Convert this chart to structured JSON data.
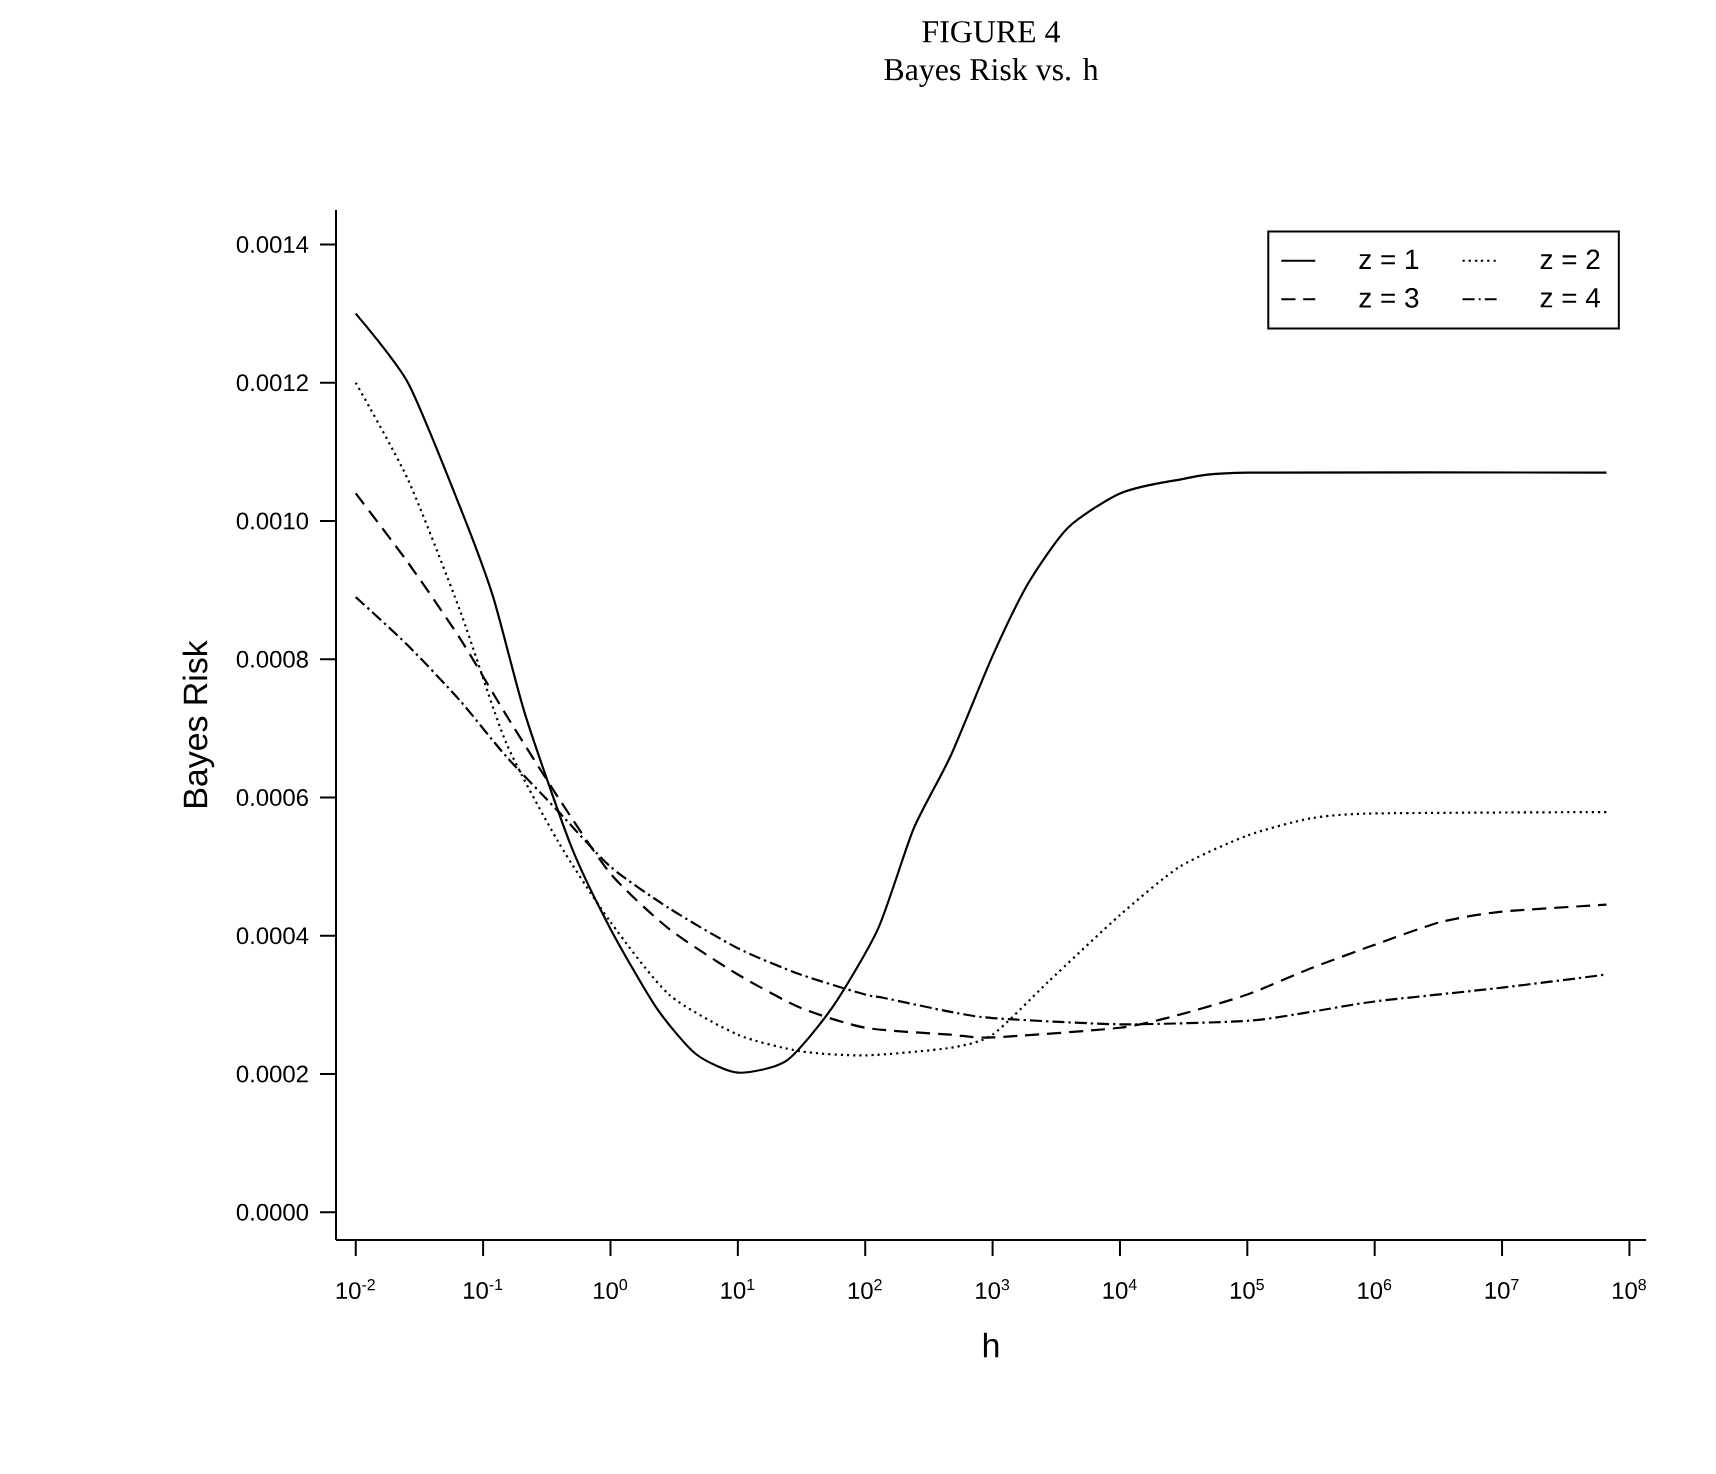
{
  "chart_data": {
    "type": "line",
    "title": "FIGURE 4",
    "subtitle": "Bayes Risk vs. h",
    "xlabel": "h",
    "ylabel": "Bayes Risk",
    "log": "x",
    "legend": "top right",
    "grid": false,
    "xlim": [
      0.007,
      135000000.0
    ],
    "ylim": [
      -4e-05,
      0.00145
    ],
    "xticks": [
      {
        "value": 0.01,
        "label": "10$^{-2}$"
      },
      {
        "value": 0.1,
        "label": "10$^{-1}$"
      },
      {
        "value": 1,
        "label": "10$^{0}$"
      },
      {
        "value": 10,
        "label": "10$^{1}$"
      },
      {
        "value": 100,
        "label": "10$^{2}$"
      },
      {
        "value": 1000,
        "label": "10$^{3}$"
      },
      {
        "value": 10000,
        "label": "10$^{4}$"
      },
      {
        "value": 100000,
        "label": "10$^{5}$"
      },
      {
        "value": 1000000,
        "label": "10$^{6}$"
      },
      {
        "value": 10000000,
        "label": "10$^{7}$"
      },
      {
        "value": 100000000,
        "label": "10$^{8}$"
      }
    ],
    "yticks": [
      {
        "value": 0,
        "label": "0.0000"
      },
      {
        "value": 0.0002,
        "label": "0.0002"
      },
      {
        "value": 0.0004,
        "label": "0.0004"
      },
      {
        "value": 0.0006,
        "label": "0.0006"
      },
      {
        "value": 0.0008,
        "label": "0.0008"
      },
      {
        "value": 0.001,
        "label": "0.0010"
      },
      {
        "value": 0.0012,
        "label": "0.0012"
      },
      {
        "value": 0.0014,
        "label": "0.0014"
      }
    ],
    "series": [
      {
        "name": "z = 1",
        "color": "#000000",
        "line_style": "solid",
        "x": [
          0.01,
          0.0257,
          0.066,
          0.12,
          0.214,
          0.49,
          1,
          2.29,
          4.68,
          10,
          24,
          55,
          126,
          240,
          468,
          1000,
          1905,
          3890,
          10000,
          29500,
          100000,
          66000000.0
        ],
        "values": [
          0.0013,
          0.0012,
          0.00102,
          0.00089,
          0.00072,
          0.00053,
          0.00041,
          0.000296,
          0.000229,
          0.000202,
          0.000219,
          0.000296,
          0.00041,
          0.000555,
          0.00066,
          0.000805,
          0.00091,
          0.00099,
          0.00104,
          0.00106,
          0.00107,
          0.00107
        ]
      },
      {
        "name": "z = 2",
        "color": "#000000",
        "line_style": "dotted",
        "x": [
          0.01,
          0.0257,
          0.066,
          0.151,
          0.389,
          1,
          2.88,
          10,
          31,
          100,
          468,
          1000,
          2754,
          10000,
          29500,
          100000,
          316000,
          1000000,
          66000000.0
        ],
        "values": [
          0.0012,
          0.00106,
          0.00087,
          0.00068,
          0.000536,
          0.00042,
          0.000315,
          0.000257,
          0.000233,
          0.000227,
          0.000238,
          0.000257,
          0.000334,
          0.00043,
          0.0005,
          0.000545,
          0.00057,
          0.000577,
          0.000579
        ]
      },
      {
        "name": "z = 3",
        "color": "#000000",
        "line_style": "dashed",
        "x": [
          0.01,
          0.0257,
          0.066,
          0.151,
          0.389,
          1,
          2.88,
          10,
          31,
          100,
          468,
          1000,
          10000,
          29500,
          100000,
          316000,
          1000000,
          3310000,
          10000000,
          66000000.0
        ],
        "values": [
          0.00104,
          0.00094,
          0.00083,
          0.00072,
          0.0006,
          0.00049,
          0.00041,
          0.000344,
          0.000296,
          0.000267,
          0.000257,
          0.000253,
          0.000267,
          0.000286,
          0.000315,
          0.000353,
          0.000387,
          0.00042,
          0.000435,
          0.000445
        ]
      },
      {
        "name": "z = 4",
        "color": "#000000",
        "line_style": "dashdot",
        "x": [
          0.01,
          0.0257,
          0.066,
          0.151,
          0.389,
          1,
          2.88,
          10,
          31,
          100,
          141,
          468,
          1000,
          10000,
          100000,
          316000,
          1000000,
          10000000,
          66000000.0
        ],
        "values": [
          0.00089,
          0.00082,
          0.00074,
          0.00066,
          0.00058,
          0.0005,
          0.00044,
          0.000382,
          0.000344,
          0.000315,
          0.00031,
          0.00029,
          0.000281,
          0.000272,
          0.000277,
          0.00029,
          0.000305,
          0.000325,
          0.000344
        ]
      }
    ]
  }
}
